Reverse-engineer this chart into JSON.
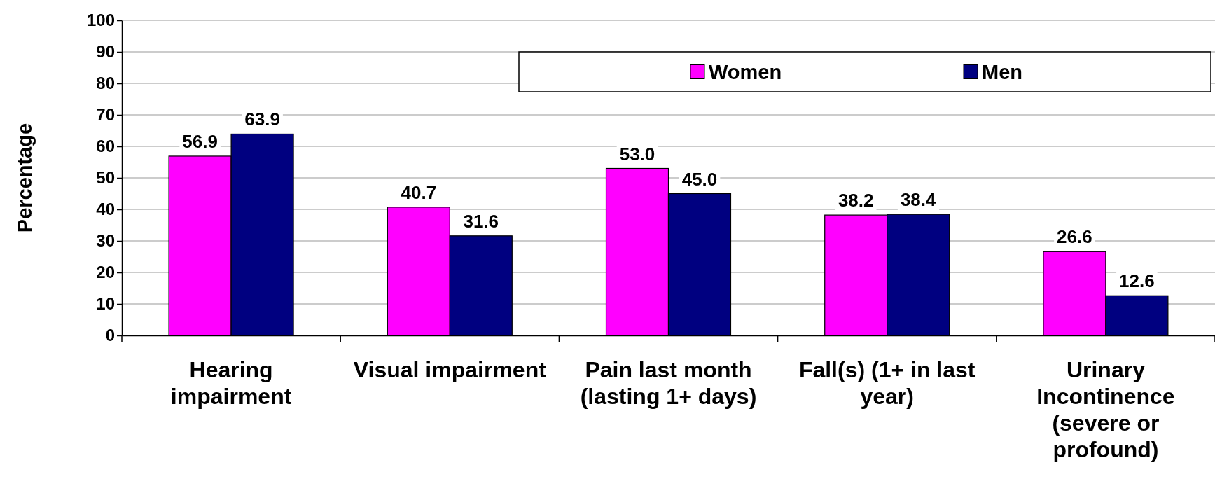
{
  "chart_data": {
    "type": "bar",
    "ylabel": "Percentage",
    "categories": [
      "Hearing impairment",
      "Visual impairment",
      "Pain last month (lasting 1+ days)",
      "Fall(s) (1+ in last year)",
      "Urinary Incontinence (severe or profound)"
    ],
    "series": [
      {
        "name": "Women",
        "color": "#ff00ff",
        "values": [
          56.9,
          40.7,
          53.0,
          38.2,
          26.6
        ],
        "value_labels": [
          "56.9",
          "40.7",
          "53.0",
          "38.2",
          "26.6"
        ]
      },
      {
        "name": "Men",
        "color": "#000080",
        "values": [
          63.9,
          31.6,
          45.0,
          38.4,
          12.6
        ],
        "value_labels": [
          "63.9",
          "31.6",
          "45.0",
          "38.4",
          "12.6"
        ]
      }
    ],
    "ylim": [
      0,
      100
    ],
    "yticks": [
      0,
      10,
      20,
      30,
      40,
      50,
      60,
      70,
      80,
      90,
      100
    ],
    "grid": "y",
    "legend": "top right"
  }
}
